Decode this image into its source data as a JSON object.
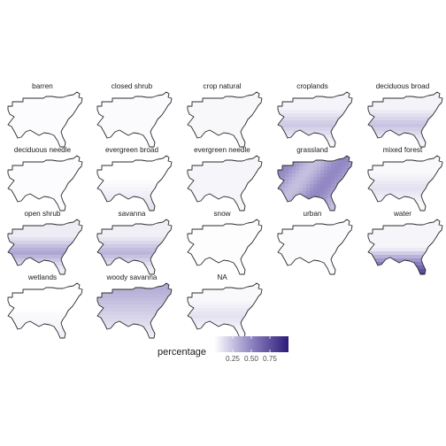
{
  "map": {
    "legend": {
      "title": "percentage",
      "ticks": [
        {
          "value": 0.25,
          "label": "0.25"
        },
        {
          "value": 0.5,
          "label": "0.50"
        },
        {
          "value": 0.75,
          "label": "0.75"
        }
      ],
      "range": [
        0.0,
        1.0
      ],
      "colors": {
        "low": "#ffffff",
        "high": "#2c1c78"
      }
    },
    "panels": [
      {
        "name": "barren",
        "intensity": 0.03,
        "pattern": "faint"
      },
      {
        "name": "closed  shrub",
        "intensity": 0.04,
        "pattern": "faint"
      },
      {
        "name": "crop  natural",
        "intensity": 0.06,
        "pattern": "faint"
      },
      {
        "name": "croplands",
        "intensity": 0.18,
        "pattern": "band"
      },
      {
        "name": "deciduous  broad",
        "intensity": 0.2,
        "pattern": "band"
      },
      {
        "name": "deciduous  needle",
        "intensity": 0.03,
        "pattern": "faint"
      },
      {
        "name": "evergreen  broad",
        "intensity": 0.12,
        "pattern": "south"
      },
      {
        "name": "evergreen  needle",
        "intensity": 0.08,
        "pattern": "faint"
      },
      {
        "name": "grassland",
        "intensity": 0.5,
        "pattern": "full"
      },
      {
        "name": "mixed  forest",
        "intensity": 0.1,
        "pattern": "band"
      },
      {
        "name": "open  shrub",
        "intensity": 0.3,
        "pattern": "band"
      },
      {
        "name": "savanna",
        "intensity": 0.25,
        "pattern": "band"
      },
      {
        "name": "snow",
        "intensity": 0.02,
        "pattern": "faint"
      },
      {
        "name": "urban",
        "intensity": 0.04,
        "pattern": "faint"
      },
      {
        "name": "water",
        "intensity": 0.8,
        "pattern": "coast"
      },
      {
        "name": "wetlands",
        "intensity": 0.06,
        "pattern": "south"
      },
      {
        "name": "woody  savanna",
        "intensity": 0.35,
        "pattern": "north"
      },
      {
        "name": "NA",
        "intensity": 0.1,
        "pattern": "band"
      }
    ]
  }
}
